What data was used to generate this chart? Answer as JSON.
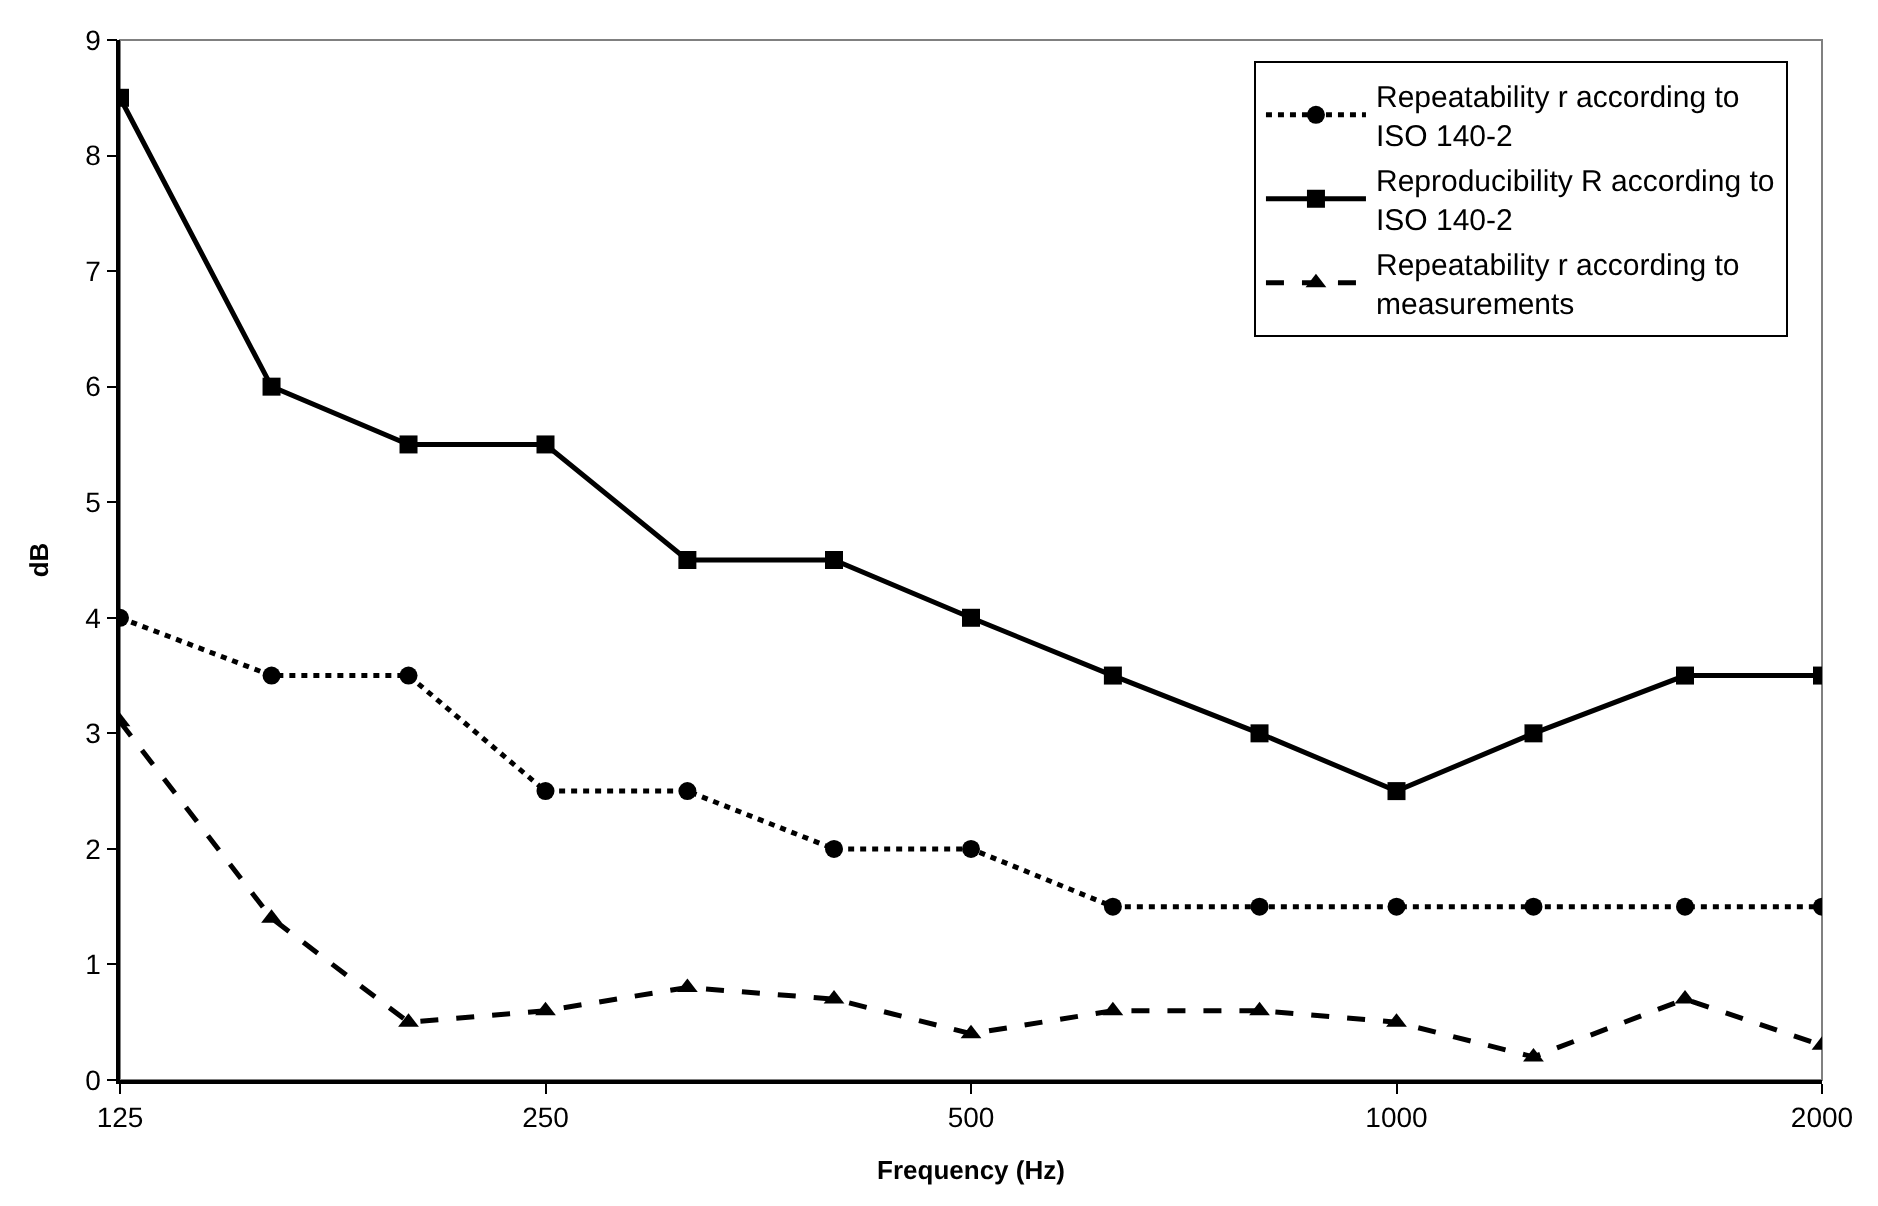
{
  "chart_data": {
    "type": "line",
    "xlabel": "Frequency (Hz)",
    "ylabel": "dB",
    "x": [
      125,
      160,
      200,
      250,
      315,
      400,
      500,
      630,
      800,
      1000,
      1250,
      1600,
      2000
    ],
    "log": "x",
    "xlim": [
      125,
      2000
    ],
    "xticks": [
      125,
      250,
      500,
      1000,
      2000
    ],
    "ylim": [
      0,
      9
    ],
    "yticks": [
      0,
      1,
      2,
      3,
      4,
      5,
      6,
      7,
      8,
      9
    ],
    "grid": false,
    "legend": "top right",
    "series": [
      {
        "name": "Repeatability r according to ISO 140-2",
        "color": "#000000",
        "marker": "circle",
        "line_style": "dotted",
        "values": [
          4,
          3.5,
          3.5,
          2.5,
          2.5,
          2,
          2,
          1.5,
          1.5,
          1.5,
          1.5,
          1.5,
          1.5
        ]
      },
      {
        "name": "Reproducibility R according to ISO 140-2",
        "color": "#000000",
        "marker": "square",
        "line_style": "solid",
        "values": [
          8.5,
          6,
          5.5,
          5.5,
          4.5,
          4.5,
          4,
          3.5,
          3,
          2.5,
          3,
          3.5,
          3.5
        ]
      },
      {
        "name": "Repeatability r according to measurements",
        "color": "#000000",
        "marker": "triangle",
        "line_style": "dashed",
        "values": [
          3.1,
          1.4,
          0.5,
          0.6,
          0.8,
          0.7,
          0.4,
          0.6,
          0.6,
          0.5,
          0.2,
          0.7,
          0.3
        ]
      }
    ]
  }
}
